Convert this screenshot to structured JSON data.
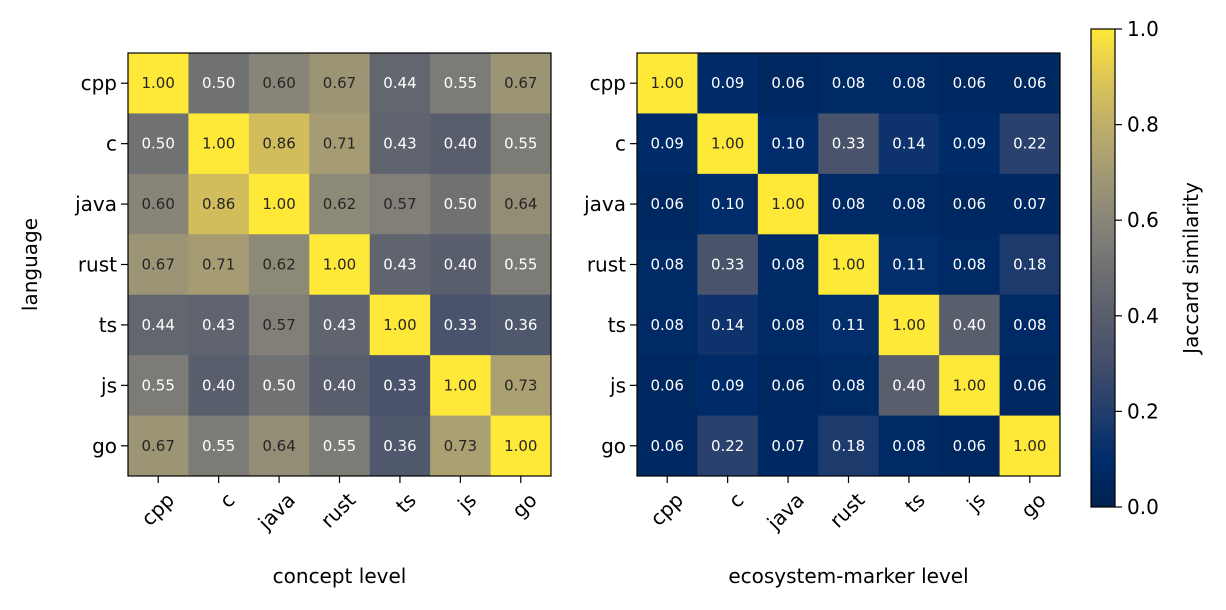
{
  "chart_data": [
    {
      "type": "heatmap",
      "xlabel": "concept level",
      "ylabel": "language",
      "categories": [
        "cpp",
        "c",
        "java",
        "rust",
        "ts",
        "js",
        "go"
      ],
      "rows": [
        "cpp",
        "c",
        "java",
        "rust",
        "ts",
        "js",
        "go"
      ],
      "values": [
        [
          1.0,
          0.5,
          0.6,
          0.67,
          0.44,
          0.55,
          0.67
        ],
        [
          0.5,
          1.0,
          0.86,
          0.71,
          0.43,
          0.4,
          0.55
        ],
        [
          0.6,
          0.86,
          1.0,
          0.62,
          0.57,
          0.5,
          0.64
        ],
        [
          0.67,
          0.71,
          0.62,
          1.0,
          0.43,
          0.4,
          0.55
        ],
        [
          0.44,
          0.43,
          0.57,
          0.43,
          1.0,
          0.33,
          0.36
        ],
        [
          0.55,
          0.4,
          0.5,
          0.4,
          0.33,
          1.0,
          0.73
        ],
        [
          0.67,
          0.55,
          0.64,
          0.55,
          0.36,
          0.73,
          1.0
        ]
      ],
      "colormap": "cividis",
      "vmin": 0.0,
      "vmax": 1.0
    },
    {
      "type": "heatmap",
      "xlabel": "ecosystem-marker level",
      "ylabel": "",
      "categories": [
        "cpp",
        "c",
        "java",
        "rust",
        "ts",
        "js",
        "go"
      ],
      "rows": [
        "cpp",
        "c",
        "java",
        "rust",
        "ts",
        "js",
        "go"
      ],
      "values": [
        [
          1.0,
          0.09,
          0.06,
          0.08,
          0.08,
          0.06,
          0.06
        ],
        [
          0.09,
          1.0,
          0.1,
          0.33,
          0.14,
          0.09,
          0.22
        ],
        [
          0.06,
          0.1,
          1.0,
          0.08,
          0.08,
          0.06,
          0.07
        ],
        [
          0.08,
          0.33,
          0.08,
          1.0,
          0.11,
          0.08,
          0.18
        ],
        [
          0.08,
          0.14,
          0.08,
          0.11,
          1.0,
          0.4,
          0.08
        ],
        [
          0.06,
          0.09,
          0.06,
          0.08,
          0.4,
          1.0,
          0.06
        ],
        [
          0.06,
          0.22,
          0.07,
          0.18,
          0.08,
          0.06,
          1.0
        ]
      ],
      "colormap": "cividis",
      "vmin": 0.0,
      "vmax": 1.0
    }
  ],
  "colorbar": {
    "label": "Jaccard similarity",
    "ticks": [
      "0.0",
      "0.2",
      "0.4",
      "0.6",
      "0.8",
      "1.0"
    ],
    "tick_values": [
      0.0,
      0.2,
      0.4,
      0.6,
      0.8,
      1.0
    ],
    "range": [
      0.0,
      1.0
    ]
  }
}
